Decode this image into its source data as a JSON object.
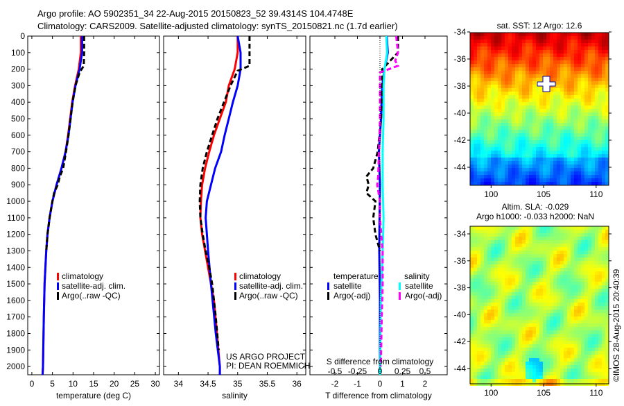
{
  "title_line1": "Argo profile: AO 5902351_34 22-Aug-2015 20150823_52 39.4314S 104.4748E",
  "title_line2": "Climatology: CARS2009. Satellite-adjusted climatology: synTS_20150821.nc (1.7d earlier)",
  "chart_data": [
    {
      "type": "line",
      "name": "temperature-profile",
      "xlabel": "temperature (deg C)",
      "xlim": [
        -1,
        31
      ],
      "ylim": [
        0,
        2050
      ],
      "xticks": [
        "0",
        "5",
        "10",
        "15",
        "20",
        "25",
        "30"
      ],
      "yticks": [
        "0",
        "100",
        "200",
        "300",
        "400",
        "500",
        "600",
        "700",
        "800",
        "900",
        "1000",
        "1100",
        "1200",
        "1300",
        "1400",
        "1500",
        "1600",
        "1700",
        "1800",
        "1900",
        "2000"
      ],
      "legend": [
        "climatology",
        "satellite-adj. clim.",
        "Argo(..raw -QC)"
      ],
      "series": [
        {
          "name": "climatology",
          "color": "#ff0000",
          "depth": [
            0,
            100,
            200,
            300,
            400,
            500,
            600,
            700,
            800,
            900,
            1000,
            1100,
            1200,
            1300,
            1400,
            1500,
            1700,
            2000,
            2050
          ],
          "values": [
            11.9,
            11.9,
            11.4,
            10.5,
            9.8,
            9.3,
            8.8,
            8.2,
            7.2,
            6.0,
            5.0,
            4.3,
            3.8,
            3.5,
            3.3,
            3.1,
            2.9,
            2.7,
            2.6
          ]
        },
        {
          "name": "satellite-adj. clim.",
          "color": "#0000ff",
          "depth": [
            0,
            100,
            200,
            300,
            400,
            500,
            600,
            700,
            800,
            900,
            1000,
            1100,
            1200,
            1300,
            1400,
            1500,
            1700,
            2000,
            2050
          ],
          "values": [
            12.2,
            12.2,
            11.6,
            10.6,
            9.9,
            9.4,
            8.9,
            8.2,
            7.2,
            6.0,
            5.0,
            4.3,
            3.8,
            3.5,
            3.3,
            3.1,
            2.9,
            2.7,
            2.6
          ]
        },
        {
          "name": "Argo(..raw -QC)",
          "color": "#000000",
          "depth": [
            0,
            100,
            180,
            220,
            300,
            400,
            500,
            600,
            700,
            800,
            850,
            900,
            950,
            1000,
            1100,
            1200,
            1300
          ],
          "values": [
            12.7,
            12.7,
            12.6,
            11.6,
            10.6,
            9.9,
            9.4,
            8.9,
            8.3,
            7.6,
            6.8,
            6.3,
            5.4,
            5.0,
            4.3,
            3.8,
            3.5
          ]
        }
      ]
    },
    {
      "type": "line",
      "name": "salinity-profile",
      "xlabel": "salinity",
      "xlim": [
        33.75,
        36.15
      ],
      "ylim": [
        0,
        2050
      ],
      "xticks": [
        "34",
        "34.5",
        "35",
        "35.5",
        "36"
      ],
      "legend": [
        "climatology",
        "satellite-adj. clim.",
        "Argo(..raw -QC)"
      ],
      "series": [
        {
          "name": "climatology",
          "color": "#ff0000",
          "depth": [
            0,
            100,
            200,
            300,
            400,
            500,
            600,
            700,
            800,
            900,
            1000,
            1100,
            1200,
            1300,
            1400,
            1500,
            1600,
            1800,
            2000,
            2050
          ],
          "values": [
            35.0,
            35.0,
            34.95,
            34.85,
            34.8,
            34.7,
            34.6,
            34.52,
            34.45,
            34.4,
            34.38,
            34.37,
            34.4,
            34.45,
            34.5,
            34.55,
            34.6,
            34.65,
            34.7,
            34.7
          ]
        },
        {
          "name": "satellite-adj. clim.",
          "color": "#0000ff",
          "depth": [
            0,
            100,
            200,
            300,
            400,
            500,
            600,
            700,
            800,
            900,
            1000,
            1100,
            1200,
            1300,
            1500,
            1800,
            2000,
            2050
          ],
          "values": [
            35.0,
            35.05,
            35.05,
            35.0,
            34.92,
            34.85,
            34.78,
            34.72,
            34.62,
            34.55,
            34.48,
            34.46,
            34.48,
            34.5,
            34.55,
            34.63,
            34.7,
            34.7
          ]
        },
        {
          "name": "Argo(..raw -QC)",
          "color": "#000000",
          "depth": [
            0,
            180,
            210,
            300,
            400,
            500,
            600,
            700,
            800,
            900,
            1000,
            1100,
            1200,
            1300,
            1400,
            1500,
            1700,
            1900
          ],
          "values": [
            35.2,
            35.2,
            35.0,
            34.88,
            34.77,
            34.66,
            34.57,
            34.48,
            34.41,
            34.37,
            34.36,
            34.37,
            34.41,
            34.46,
            34.52,
            34.57,
            34.63,
            34.68
          ]
        }
      ],
      "annotation": [
        "US ARGO PROJECT",
        "PI: DEAN ROEMMICH"
      ]
    },
    {
      "type": "line",
      "name": "difference-profile",
      "xlabel": "T difference from climatology",
      "xlabel_top": "S difference from climatology",
      "xlim": [
        -3,
        3
      ],
      "xticks": [
        "-2",
        "-1",
        "0",
        "1",
        "2"
      ],
      "xticks_top": [
        "-0.5",
        "-0.25",
        "0",
        "0.25",
        "0.5"
      ],
      "legend_temperature_title": "temperature",
      "legend_salinity_title": "salinity",
      "legend": [
        "satellite",
        "Argo(-adj)",
        "satellite",
        "Argo(-adj)"
      ],
      "series": [
        {
          "name": "T satellite",
          "color": "#0000ff",
          "unit": "T",
          "depth": [
            0,
            100,
            200,
            300,
            500,
            700,
            900,
            1100,
            1300,
            1600,
            2050
          ],
          "values": [
            0.3,
            0.35,
            0.2,
            0.1,
            0.05,
            -0.05,
            0.0,
            -0.02,
            -0.03,
            0.0,
            0.0
          ]
        },
        {
          "name": "T Argo(-adj)",
          "color": "#000000",
          "unit": "T",
          "depth": [
            0,
            100,
            200,
            300,
            500,
            700,
            800,
            850,
            900,
            950,
            1000,
            1100,
            1200,
            1300
          ],
          "values": [
            0.8,
            0.8,
            0.1,
            0.1,
            0.05,
            -0.1,
            -0.3,
            -0.6,
            -0.5,
            -0.6,
            -0.2,
            -0.3,
            -0.2,
            0.0
          ]
        },
        {
          "name": "S satellite",
          "color": "#00ffff",
          "unit": "S",
          "depth": [
            0,
            100,
            200,
            300,
            500,
            700,
            900,
            1100,
            1300,
            1600,
            2050
          ],
          "values": [
            0.07,
            0.08,
            0.05,
            0.04,
            0.04,
            0.03,
            0.03,
            0.04,
            0.03,
            0.01,
            0.0
          ]
        },
        {
          "name": "S Argo(-adj)",
          "color": "#ff00ff",
          "unit": "S",
          "depth": [
            0,
            100,
            150,
            180,
            220,
            300,
            500,
            700,
            850,
            900,
            1000,
            1100,
            1300,
            1500,
            1700,
            2000
          ],
          "values": [
            0.18,
            0.2,
            0.17,
            0.2,
            0.0,
            0.0,
            0.0,
            -0.01,
            -0.02,
            -0.03,
            0.0,
            0.0,
            0.03,
            0.03,
            0.02,
            0.01
          ]
        }
      ]
    },
    {
      "type": "heatmap",
      "name": "sst-map",
      "title": "sat. SST: 12 Argo: 12.6",
      "xticks": [
        "100",
        "105",
        "110"
      ],
      "yticks": [
        "-34",
        "-36",
        "-38",
        "-40",
        "-42",
        "-44"
      ],
      "xlim": [
        98,
        111.2
      ],
      "ylim": [
        -45.5,
        -33.3
      ]
    },
    {
      "type": "heatmap",
      "name": "sla-map",
      "title_line1": "Altim. SLA: -0.029",
      "title_line2": "Argo h1000: -0.033 h2000: NaN",
      "xticks": [
        "100",
        "105",
        "110"
      ],
      "yticks": [
        "-34",
        "-36",
        "-38",
        "-40",
        "-42",
        "-44"
      ],
      "xlim": [
        98,
        111.2
      ],
      "ylim": [
        -45.5,
        -33.3
      ]
    }
  ],
  "credit": "©IMOS 28-Aug-2015 20:40:39"
}
